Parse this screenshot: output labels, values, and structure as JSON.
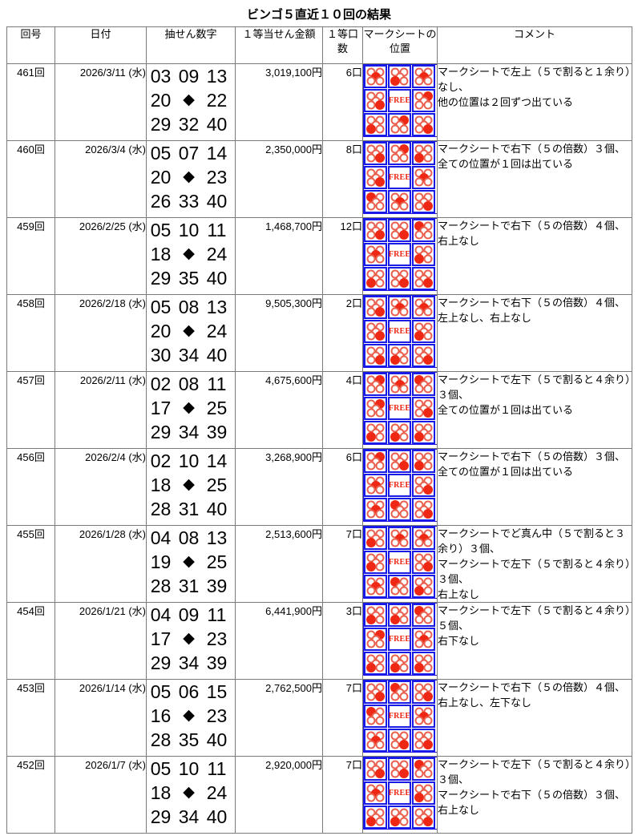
{
  "title": "ビンゴ５直近１０回の結果",
  "headers": [
    "回号",
    "日付",
    "抽せん数字",
    "１等当せん金額",
    "１等口数",
    "マークシートの位置",
    "コメント"
  ],
  "free_label": "FREE",
  "diamond": "◆",
  "colors": {
    "grid_blue": "#1a1ae6",
    "mark_red": "#ee2814",
    "mark_outline": "#ea604e",
    "table_border": "#7a7a7a"
  },
  "rows": [
    {
      "round": "461回",
      "date": "2026/3/11 (水)",
      "numbers": [
        "03",
        "09",
        "13",
        "20",
        "22",
        "29",
        "32",
        "40"
      ],
      "prize": "3,019,100円",
      "units": "6口",
      "marks": [
        2,
        3,
        2,
        4,
        1,
        3,
        1,
        4
      ],
      "comment": "マークシートで左上（５で割ると１余り）なし、\n他の位置は２回ずつ出ている"
    },
    {
      "round": "460回",
      "date": "2026/3/4 (水)",
      "numbers": [
        "05",
        "07",
        "14",
        "20",
        "23",
        "26",
        "33",
        "40"
      ],
      "prize": "2,350,000円",
      "units": "8口",
      "marks": [
        4,
        1,
        3,
        4,
        2,
        0,
        2,
        4
      ],
      "comment": "マークシートで右下（５の倍数）３個、\n全ての位置が１回は出ている"
    },
    {
      "round": "459回",
      "date": "2026/2/25 (水)",
      "numbers": [
        "05",
        "10",
        "11",
        "18",
        "24",
        "29",
        "35",
        "40"
      ],
      "prize": "1,468,700円",
      "units": "12口",
      "marks": [
        4,
        4,
        0,
        2,
        3,
        3,
        4,
        4
      ],
      "comment": "マークシートで右下（５の倍数）４個、\n右上なし"
    },
    {
      "round": "458回",
      "date": "2026/2/18 (水)",
      "numbers": [
        "05",
        "08",
        "13",
        "20",
        "24",
        "30",
        "34",
        "40"
      ],
      "prize": "9,505,300円",
      "units": "2口",
      "marks": [
        4,
        2,
        2,
        4,
        3,
        4,
        3,
        4
      ],
      "comment": "マークシートで右下（５の倍数）４個、\n左上なし、右上なし"
    },
    {
      "round": "457回",
      "date": "2026/2/11 (水)",
      "numbers": [
        "02",
        "08",
        "11",
        "17",
        "25",
        "29",
        "34",
        "39"
      ],
      "prize": "4,675,600円",
      "units": "4口",
      "marks": [
        1,
        2,
        0,
        1,
        4,
        3,
        3,
        3
      ],
      "comment": "マークシートで左下（５で割ると４余り）３個、\n全ての位置が１回は出ている"
    },
    {
      "round": "456回",
      "date": "2026/2/4 (水)",
      "numbers": [
        "02",
        "10",
        "14",
        "18",
        "25",
        "28",
        "31",
        "40"
      ],
      "prize": "3,268,900円",
      "units": "6口",
      "marks": [
        1,
        4,
        3,
        2,
        4,
        2,
        0,
        4
      ],
      "comment": "マークシートで右下（５の倍数）３個、\n全ての位置が１回は出ている"
    },
    {
      "round": "455回",
      "date": "2026/1/28 (水)",
      "numbers": [
        "04",
        "08",
        "13",
        "19",
        "25",
        "28",
        "31",
        "39"
      ],
      "prize": "2,513,600円",
      "units": "7口",
      "marks": [
        3,
        2,
        2,
        3,
        4,
        2,
        0,
        3
      ],
      "comment": "マークシートでど真ん中（５で割ると３余り）３個、\nマークシートで左下（５で割ると４余り）３個、\n右上なし"
    },
    {
      "round": "454回",
      "date": "2026/1/21 (水)",
      "numbers": [
        "04",
        "09",
        "11",
        "17",
        "23",
        "29",
        "34",
        "39"
      ],
      "prize": "6,441,900円",
      "units": "3口",
      "marks": [
        3,
        3,
        0,
        1,
        2,
        3,
        3,
        3
      ],
      "comment": "マークシートで左下（５で割ると４余り）５個、\n右下なし"
    },
    {
      "round": "453回",
      "date": "2026/1/14 (水)",
      "numbers": [
        "05",
        "06",
        "15",
        "16",
        "23",
        "28",
        "35",
        "40"
      ],
      "prize": "2,762,500円",
      "units": "7口",
      "marks": [
        4,
        0,
        4,
        0,
        2,
        2,
        4,
        4
      ],
      "comment": "マークシートで右下（５の倍数）４個、\n右上なし、左下なし"
    },
    {
      "round": "452回",
      "date": "2026/1/7 (水)",
      "numbers": [
        "05",
        "10",
        "11",
        "18",
        "24",
        "29",
        "34",
        "40"
      ],
      "prize": "2,920,000円",
      "units": "7口",
      "marks": [
        4,
        4,
        0,
        2,
        3,
        3,
        3,
        4
      ],
      "comment": "マークシートで左下（５で割ると４余り）３個、\nマークシートで右下（５の倍数）３個、\n右上なし"
    }
  ]
}
